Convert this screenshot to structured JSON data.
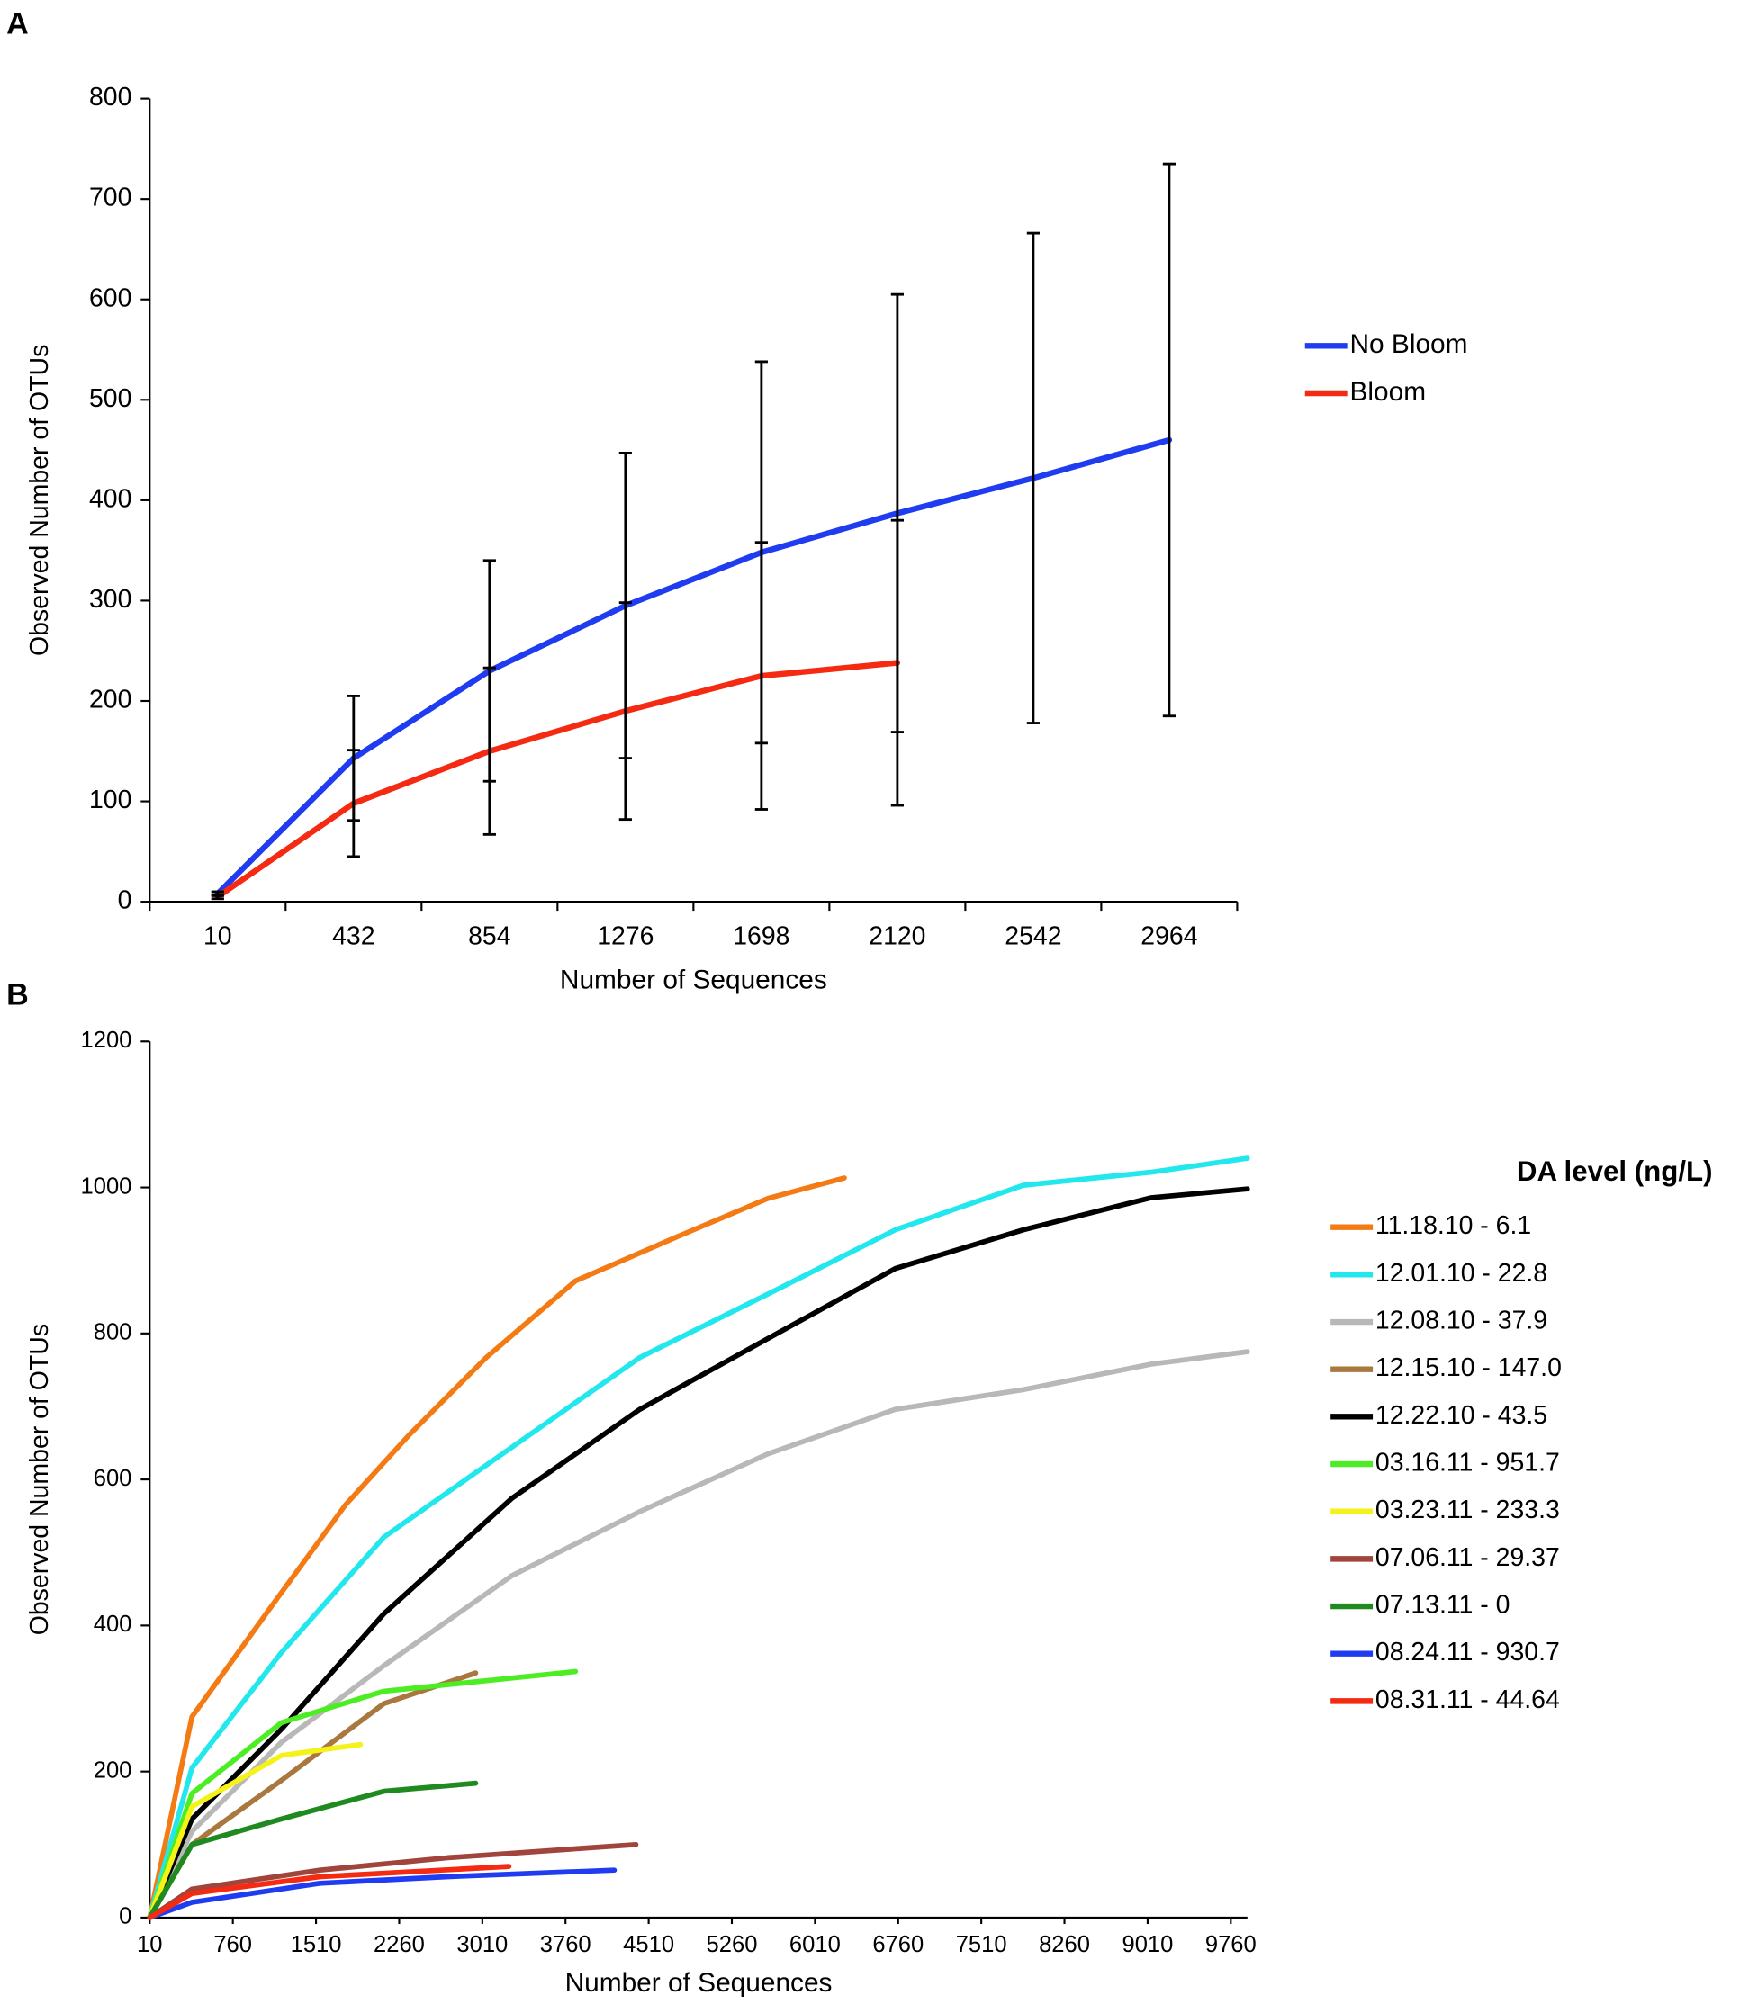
{
  "chart_data": [
    {
      "type": "line",
      "panel": "A",
      "xlabel": "Number of Sequences",
      "ylabel": "Observed Number of OTUs",
      "categories": [
        "10",
        "432",
        "854",
        "1276",
        "1698",
        "2120",
        "2542",
        "2964"
      ],
      "ylim": [
        0,
        800
      ],
      "yticks": [
        0,
        100,
        200,
        300,
        400,
        500,
        600,
        700,
        800
      ],
      "error_bars": true,
      "series": [
        {
          "name": "No Bloom",
          "color": "#1f3cf0",
          "values": [
            8,
            143,
            230,
            295,
            348,
            387,
            422,
            460
          ],
          "errors": [
            2,
            62,
            110,
            152,
            190,
            218,
            244,
            275
          ]
        },
        {
          "name": "Bloom",
          "color": "#f52a12",
          "values": [
            5,
            98,
            150,
            190,
            225,
            238,
            null,
            null
          ],
          "errors": [
            2,
            53,
            83,
            108,
            133,
            142,
            null,
            null
          ]
        }
      ]
    },
    {
      "type": "line",
      "panel": "B",
      "xlabel": "Number of Sequences",
      "ylabel": "Observed Number of OTUs",
      "legend_title": "DA level (ng/L)",
      "xlim": [
        10,
        9910
      ],
      "xticks": [
        10,
        760,
        1510,
        2260,
        3010,
        3760,
        4510,
        5260,
        6010,
        6760,
        7510,
        8260,
        9010,
        9760
      ],
      "ylim": [
        0,
        1200
      ],
      "yticks": [
        0,
        200,
        400,
        600,
        800,
        1000,
        1200
      ],
      "series": [
        {
          "name": "11.18.10 - 6.1",
          "color": "#f47b14",
          "x": [
            10,
            391,
            1140,
            1775,
            2350,
            3045,
            3850,
            4775,
            5585,
            6275
          ],
          "values": [
            0,
            275,
            433,
            565,
            661,
            767,
            872,
            933,
            985,
            1013
          ]
        },
        {
          "name": "12.01.10 - 22.8",
          "color": "#22e8ee",
          "x": [
            10,
            391,
            1198,
            2122,
            3275,
            4430,
            5585,
            6735,
            7890,
            9045,
            9910
          ],
          "values": [
            0,
            205,
            363,
            521,
            644,
            767,
            854,
            942,
            1003,
            1021,
            1040
          ]
        },
        {
          "name": "12.08.10 - 37.9",
          "color": "#b8b8b8",
          "x": [
            10,
            391,
            1198,
            2122,
            3275,
            4430,
            5585,
            6735,
            7890,
            9045,
            9910
          ],
          "values": [
            0,
            118,
            240,
            345,
            468,
            556,
            635,
            696,
            723,
            758,
            775
          ]
        },
        {
          "name": "12.15.10 - 147.0",
          "color": "#a8783e",
          "x": [
            10,
            391,
            1198,
            2122,
            2950
          ],
          "values": [
            0,
            100,
            188,
            293,
            335
          ]
        },
        {
          "name": "12.22.10 - 43.5",
          "color": "#000000",
          "x": [
            10,
            391,
            1198,
            2122,
            3275,
            4430,
            5585,
            6735,
            7890,
            9045,
            9910
          ],
          "values": [
            0,
            135,
            258,
            416,
            574,
            696,
            793,
            889,
            942,
            986,
            998
          ]
        },
        {
          "name": "03.16.11 - 951.7",
          "color": "#4ded23",
          "x": [
            10,
            391,
            1198,
            2122,
            3275,
            3850
          ],
          "values": [
            0,
            170,
            267,
            310,
            328,
            337
          ]
        },
        {
          "name": "03.23.11 - 233.3",
          "color": "#f5f21a",
          "x": [
            10,
            391,
            1198,
            1910
          ],
          "values": [
            0,
            152,
            222,
            237
          ]
        },
        {
          "name": "07.06.11 - 29.37",
          "color": "#a0443c",
          "x": [
            10,
            391,
            1545,
            2699,
            4395
          ],
          "values": [
            0,
            39,
            65,
            82,
            100
          ]
        },
        {
          "name": "07.13.11 - 0",
          "color": "#1f8a1f",
          "x": [
            10,
            391,
            1198,
            2122,
            2950
          ],
          "values": [
            0,
            100,
            135,
            173,
            184
          ]
        },
        {
          "name": "08.24.11 - 930.7",
          "color": "#1f3cf0",
          "x": [
            10,
            391,
            1545,
            2699,
            4200
          ],
          "values": [
            0,
            21,
            47,
            56,
            65
          ]
        },
        {
          "name": "08.31.11 - 44.64",
          "color": "#f52a12",
          "x": [
            10,
            391,
            1545,
            3250
          ],
          "values": [
            0,
            33,
            56,
            70
          ]
        }
      ]
    }
  ]
}
